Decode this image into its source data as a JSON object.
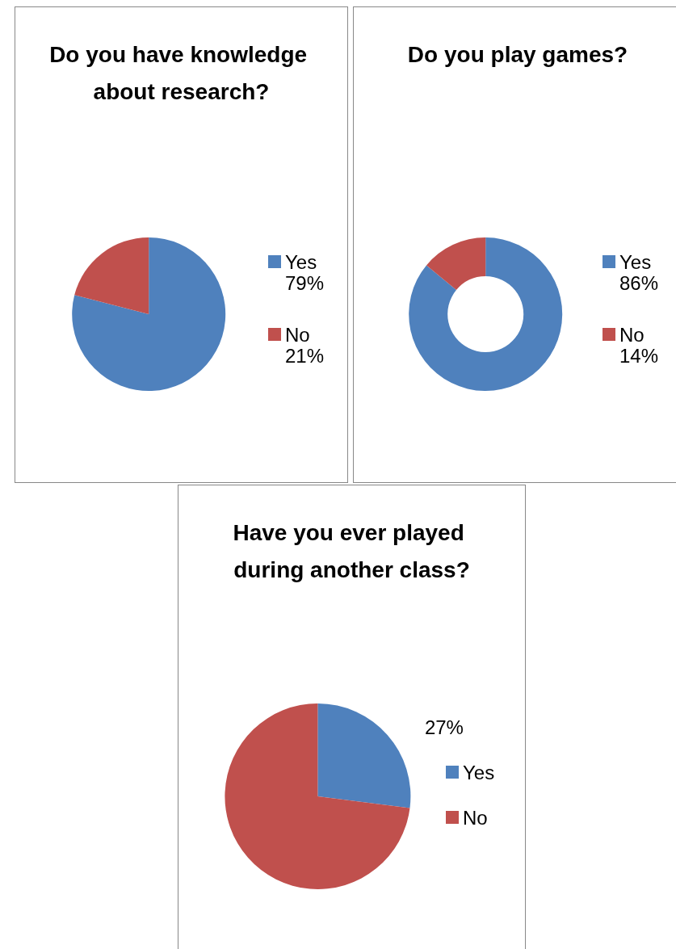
{
  "chart_data": [
    {
      "type": "pie",
      "title": "Do you have knowledge about research?",
      "categories": [
        "Yes",
        "No"
      ],
      "values": [
        79,
        21
      ],
      "colors": [
        "#4f81bd",
        "#c0504d"
      ],
      "value_labels": [
        "79%",
        "21%"
      ],
      "legend": "right"
    },
    {
      "type": "donut",
      "title": "Do you play games?",
      "categories": [
        "Yes",
        "No"
      ],
      "values": [
        86,
        14
      ],
      "colors": [
        "#4f81bd",
        "#c0504d"
      ],
      "value_labels": [
        "86%",
        "14%"
      ],
      "legend": "right"
    },
    {
      "type": "pie",
      "title": "Have you ever played during another class?",
      "categories": [
        "Yes",
        "No"
      ],
      "values": [
        27,
        73
      ],
      "colors": [
        "#4f81bd",
        "#c0504d"
      ],
      "value_labels": [
        "27%",
        null
      ],
      "legend": "right"
    }
  ]
}
